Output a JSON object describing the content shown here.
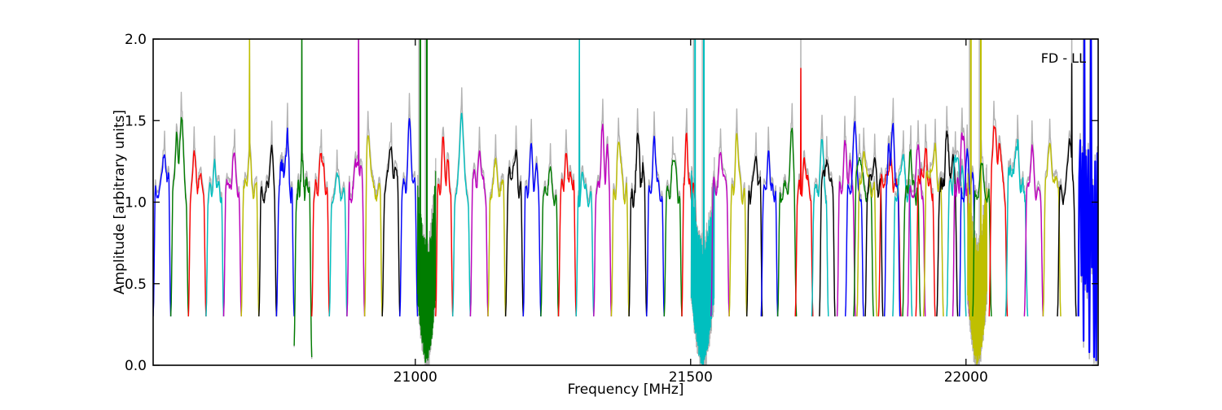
{
  "figure": {
    "background": "#ffffff"
  },
  "chart_data": {
    "type": "line",
    "title": "",
    "xlabel": "Frequency [MHz]",
    "ylabel": "Amplitude [arbitrary units]",
    "annotation": "FD - LL",
    "xlim": [
      20524,
      22240
    ],
    "ylim": [
      0.0,
      2.0
    ],
    "xticks": [
      21000,
      21500,
      22000
    ],
    "xtick_labels": [
      "21000",
      "21500",
      "22000"
    ],
    "yticks": [
      0.0,
      0.5,
      1.0,
      1.5,
      2.0
    ],
    "ytick_labels": [
      "0.0",
      "0.5",
      "1.0",
      "1.5",
      "2.0"
    ],
    "grid": false,
    "legend_position": "none",
    "baseline_level": 0.3,
    "colors": {
      "b": "#0000ff",
      "g": "#007d00",
      "r": "#ff0000",
      "c": "#00bfbf",
      "m": "#bf00bf",
      "y": "#bfbf00",
      "k": "#000000",
      "gray": "#b3b3b3"
    },
    "description": "Per-subband bandpass spectra (colored chunks cycling b,g,r,c,m,y,k) with gray unflagged data behind; RFI-filled subbands near 21010 (green), 21520 (cyan), 22020 (yellow) and 22220 (blue) span 0 to 2 with clipped spikes.",
    "chunks": [
      {
        "c": "b",
        "f0": 20524,
        "f1": 20556,
        "h": 1.32,
        "p": 0.65
      },
      {
        "c": "g",
        "f0": 20556,
        "f1": 20588,
        "h": 1.55,
        "p": 0.6
      },
      {
        "c": "r",
        "f0": 20588,
        "f1": 20620,
        "h": 1.26,
        "p": 0.35
      },
      {
        "c": "c",
        "f0": 20620,
        "f1": 20652,
        "h": 1.2,
        "p": 0.5
      },
      {
        "c": "m",
        "f0": 20652,
        "f1": 20684,
        "h": 1.27,
        "p": 0.6
      },
      {
        "c": "y",
        "f0": 20684,
        "f1": 20716,
        "h": 1.28,
        "p": 0.45,
        "sp": 20699,
        "sh": 2.1
      },
      {
        "c": "k",
        "f0": 20716,
        "f1": 20748,
        "h": 1.33,
        "p": 0.7
      },
      {
        "c": "b",
        "f0": 20748,
        "f1": 20780,
        "h": 1.4,
        "p": 0.6,
        "n": 1
      },
      {
        "c": "g",
        "f0": 20780,
        "f1": 20812,
        "h": 1.22,
        "p": 0.45,
        "sp": 20794,
        "sh": 2.1,
        "n": 1,
        "e0": 0.12,
        "e1": 0.05
      },
      {
        "c": "r",
        "f0": 20812,
        "f1": 20844,
        "h": 1.32,
        "p": 0.55
      },
      {
        "c": "c",
        "f0": 20844,
        "f1": 20876,
        "h": 1.17,
        "p": 0.5
      },
      {
        "c": "m",
        "f0": 20876,
        "f1": 20908,
        "h": 1.3,
        "p": 0.55,
        "sp": 20897,
        "sh": 2.1,
        "n": 1
      },
      {
        "c": "y",
        "f0": 20908,
        "f1": 20940,
        "h": 1.45,
        "p": 0.22
      },
      {
        "c": "k",
        "f0": 20940,
        "f1": 20972,
        "h": 1.36,
        "p": 0.45
      },
      {
        "c": "b",
        "f0": 20972,
        "f1": 21004,
        "h": 1.47,
        "p": 0.55
      },
      {
        "c": "g",
        "f0": 21004,
        "f1": 21037,
        "kind": "rfi",
        "sp2": [
          21009,
          21021
        ]
      },
      {
        "c": "r",
        "f0": 21037,
        "f1": 21068,
        "h": 1.35,
        "p": 0.45,
        "gs": 1.46
      },
      {
        "c": "c",
        "f0": 21068,
        "f1": 21100,
        "h": 1.58,
        "p": 0.5
      },
      {
        "c": "m",
        "f0": 21100,
        "f1": 21132,
        "h": 1.31,
        "p": 0.55
      },
      {
        "c": "y",
        "f0": 21132,
        "f1": 21164,
        "h": 1.22,
        "p": 0.45
      },
      {
        "c": "k",
        "f0": 21164,
        "f1": 21196,
        "h": 1.31,
        "p": 0.55
      },
      {
        "c": "b",
        "f0": 21196,
        "f1": 21228,
        "h": 1.3,
        "p": 0.45
      },
      {
        "c": "g",
        "f0": 21228,
        "f1": 21260,
        "h": 1.2,
        "p": 0.5
      },
      {
        "c": "r",
        "f0": 21260,
        "f1": 21292,
        "h": 1.27,
        "p": 0.45
      },
      {
        "c": "c",
        "f0": 21292,
        "f1": 21324,
        "h": 1.18,
        "p": 0.4,
        "sp": 21298,
        "sh": 2.1
      },
      {
        "c": "m",
        "f0": 21324,
        "f1": 21356,
        "h": 1.42,
        "p": 0.5
      },
      {
        "c": "y",
        "f0": 21356,
        "f1": 21388,
        "h": 1.4,
        "p": 0.45
      },
      {
        "c": "k",
        "f0": 21388,
        "f1": 21420,
        "h": 1.37,
        "p": 0.5,
        "n": 1
      },
      {
        "c": "b",
        "f0": 21420,
        "f1": 21452,
        "h": 1.37,
        "p": 0.45
      },
      {
        "c": "g",
        "f0": 21452,
        "f1": 21484,
        "h": 1.3,
        "p": 0.55
      },
      {
        "c": "r",
        "f0": 21484,
        "f1": 21512,
        "h": 1.38,
        "p": 0.3
      },
      {
        "c": "c",
        "f0": 21501,
        "f1": 21543,
        "kind": "rfi",
        "sp2": [
          21508,
          21524
        ]
      },
      {
        "c": "m",
        "f0": 21537,
        "f1": 21570,
        "h": 1.3,
        "p": 0.55
      },
      {
        "c": "y",
        "f0": 21570,
        "f1": 21602,
        "h": 1.4,
        "p": 0.45
      },
      {
        "c": "k",
        "f0": 21602,
        "f1": 21630,
        "h": 1.3,
        "p": 0.55
      },
      {
        "c": "b",
        "f0": 21628,
        "f1": 21658,
        "h": 1.28,
        "p": 0.45
      },
      {
        "c": "g",
        "f0": 21658,
        "f1": 21692,
        "h": 1.4,
        "p": 0.75
      },
      {
        "c": "r",
        "f0": 21690,
        "f1": 21722,
        "h": 1.24,
        "p": 0.55,
        "sp": 21700,
        "sh": 1.82,
        "gs": 2.1
      },
      {
        "c": "c",
        "f0": 21720,
        "f1": 21750,
        "h": 1.36,
        "p": 0.6
      },
      {
        "c": "k",
        "f0": 21734,
        "f1": 21762,
        "h": 1.3,
        "p": 0.5
      },
      {
        "c": "m",
        "f0": 21766,
        "f1": 21799,
        "h": 1.33,
        "p": 0.45
      },
      {
        "c": "b",
        "f0": 21781,
        "f1": 21814,
        "h": 1.48,
        "p": 0.5
      },
      {
        "c": "g",
        "f0": 21796,
        "f1": 21832,
        "h": 1.32,
        "p": 0.3
      },
      {
        "c": "y",
        "f0": 21802,
        "f1": 21838,
        "h": 1.3,
        "p": 0.4
      },
      {
        "c": "k",
        "f0": 21817,
        "f1": 21849,
        "h": 1.25,
        "p": 0.5
      },
      {
        "c": "r",
        "f0": 21841,
        "f1": 21882,
        "h": 1.25,
        "p": 0.5
      },
      {
        "c": "b",
        "f0": 21852,
        "f1": 21880,
        "h": 1.5,
        "p": 0.55
      },
      {
        "c": "c",
        "f0": 21867,
        "f1": 21902,
        "h": 1.3,
        "p": 0.5
      },
      {
        "c": "g",
        "f0": 21885,
        "f1": 21917,
        "h": 1.28,
        "p": 0.45
      },
      {
        "c": "m",
        "f0": 21894,
        "f1": 21926,
        "h": 1.3,
        "p": 0.6
      },
      {
        "c": "r",
        "f0": 21909,
        "f1": 21944,
        "h": 1.3,
        "p": 0.5
      },
      {
        "c": "y",
        "f0": 21923,
        "f1": 21959,
        "h": 1.32,
        "p": 0.55
      },
      {
        "c": "k",
        "f0": 21947,
        "f1": 21985,
        "h": 1.38,
        "p": 0.5,
        "n": 1
      },
      {
        "c": "c",
        "f0": 21965,
        "f1": 22000,
        "h": 1.3,
        "p": 0.5
      },
      {
        "c": "m",
        "f0": 21976,
        "f1": 22006,
        "h": 1.45,
        "p": 0.6
      },
      {
        "c": "b",
        "f0": 21988,
        "f1": 22017,
        "h": 1.28,
        "p": 0.5
      },
      {
        "c": "y",
        "f0": 22003,
        "f1": 22038,
        "kind": "rfi",
        "sp2": [
          22009,
          22027
        ]
      },
      {
        "c": "g",
        "f0": 22012,
        "f1": 22046,
        "h": 1.2,
        "p": 0.5
      },
      {
        "c": "r",
        "f0": 22042,
        "f1": 22075,
        "h": 1.52,
        "p": 0.3
      },
      {
        "c": "c",
        "f0": 22072,
        "f1": 22112,
        "h": 1.35,
        "p": 0.5,
        "n": 1
      },
      {
        "c": "m",
        "f0": 22106,
        "f1": 22140,
        "h": 1.32,
        "p": 0.4
      },
      {
        "c": "y",
        "f0": 22140,
        "f1": 22172,
        "h": 1.38,
        "p": 0.4
      },
      {
        "c": "k",
        "f0": 22166,
        "f1": 22200,
        "h": 1.42,
        "p": 0.65,
        "sp": 22192,
        "sh": 1.85,
        "gs": 2.1
      },
      {
        "c": "b",
        "f0": 22204,
        "f1": 22240,
        "kind": "edge",
        "sp2": [
          22215,
          22227
        ]
      }
    ]
  }
}
